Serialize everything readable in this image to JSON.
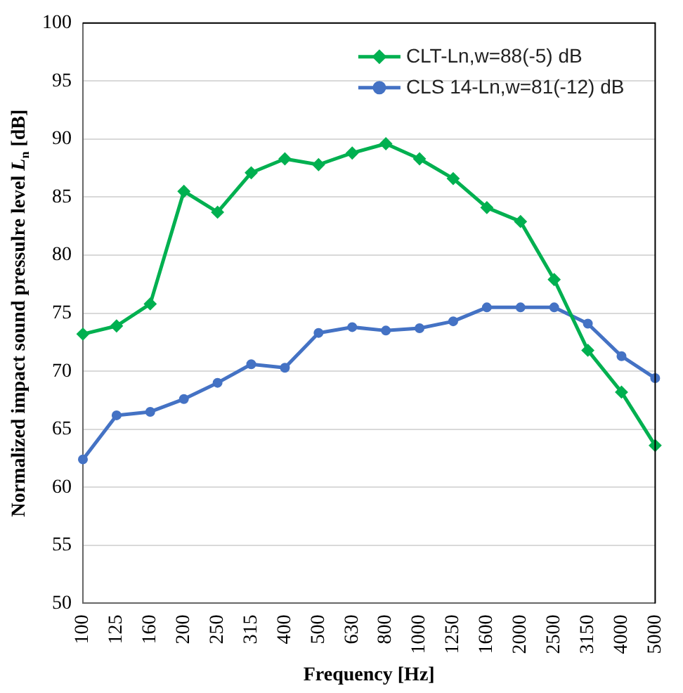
{
  "chart_data": {
    "type": "line",
    "xlabel": "Frequency [Hz]",
    "ylabel": "Normalized impact sound pressulre level L$_{n}$ [dB]",
    "categories": [
      "100",
      "125",
      "160",
      "200",
      "250",
      "315",
      "400",
      "500",
      "630",
      "800",
      "1000",
      "1250",
      "1600",
      "2000",
      "2500",
      "3150",
      "4000",
      "5000"
    ],
    "series": [
      {
        "name": "CLT-Ln,w=88(-5) dB",
        "color": "#00b050",
        "marker": "diamond",
        "values": [
          73.2,
          73.9,
          75.8,
          85.5,
          83.7,
          87.1,
          88.3,
          87.8,
          88.8,
          89.6,
          88.3,
          86.6,
          84.1,
          82.9,
          77.9,
          71.8,
          68.2,
          63.6
        ]
      },
      {
        "name": "CLS 14-Ln,w=81(-12) dB",
        "color": "#4472c4",
        "marker": "circle",
        "values": [
          62.4,
          66.2,
          66.5,
          67.6,
          69.0,
          70.6,
          70.3,
          73.3,
          73.8,
          73.5,
          73.7,
          74.3,
          75.5,
          75.5,
          75.5,
          74.1,
          71.3,
          69.4
        ]
      }
    ],
    "ylim": [
      50,
      100
    ],
    "yticks": [
      50,
      55,
      60,
      65,
      70,
      75,
      80,
      85,
      90,
      95,
      100
    ],
    "grid": "y",
    "legend": "top right",
    "line_style": "solid"
  }
}
